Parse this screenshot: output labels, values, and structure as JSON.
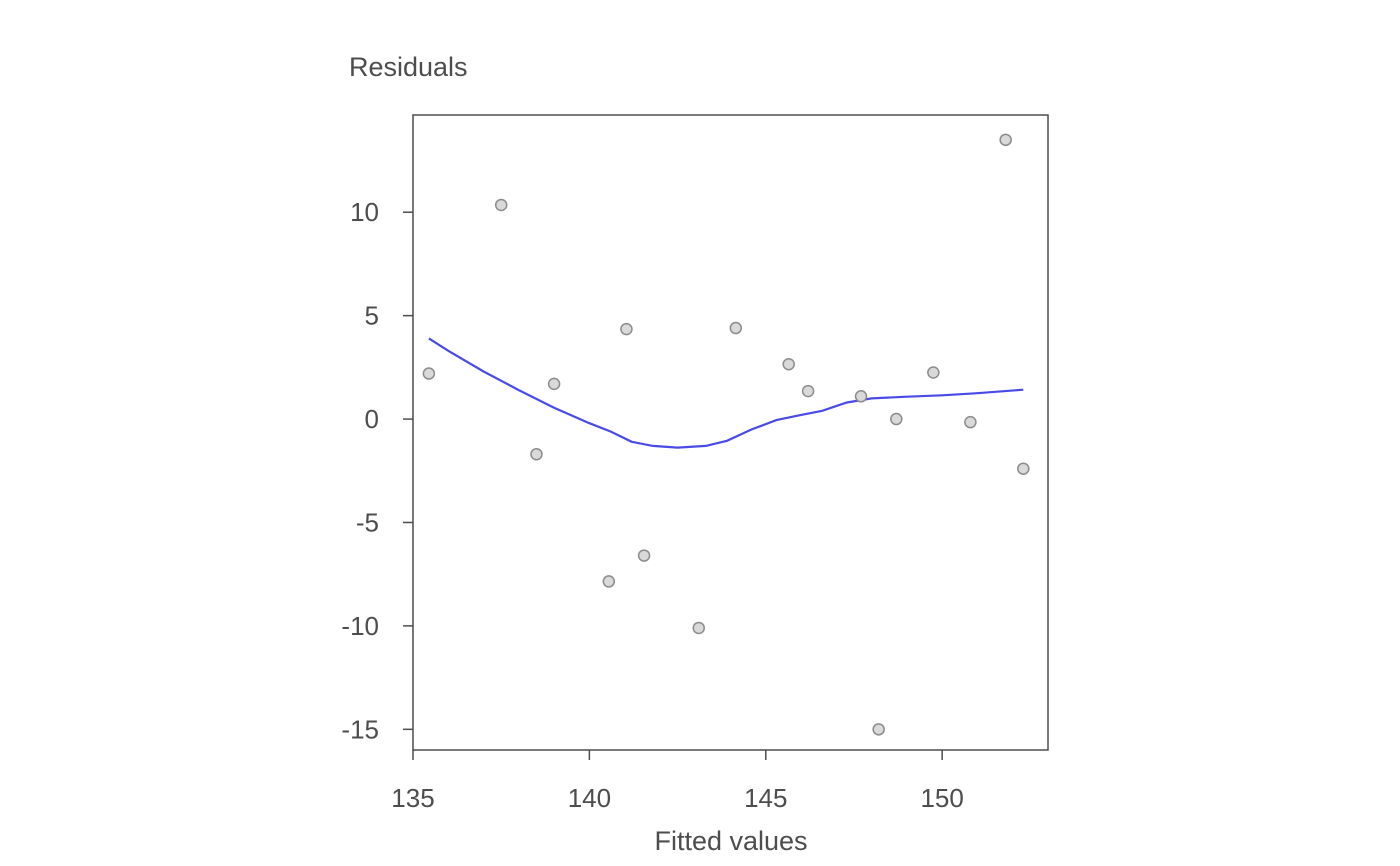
{
  "chart_data": {
    "type": "scatter",
    "title": "",
    "xlabel": "Fitted values",
    "ylabel": "Residuals",
    "xlim": [
      135,
      153
    ],
    "ylim": [
      -16,
      14.7
    ],
    "xticks": [
      135,
      140,
      145,
      150
    ],
    "yticks": [
      -15,
      -10,
      -5,
      0,
      5,
      10
    ],
    "grid": false,
    "points": [
      {
        "x": 135.45,
        "y": 2.2
      },
      {
        "x": 137.5,
        "y": 10.35
      },
      {
        "x": 138.5,
        "y": -1.7
      },
      {
        "x": 139.0,
        "y": 1.7
      },
      {
        "x": 140.55,
        "y": -7.85
      },
      {
        "x": 141.05,
        "y": 4.35
      },
      {
        "x": 141.55,
        "y": -6.6
      },
      {
        "x": 143.1,
        "y": -10.1
      },
      {
        "x": 144.15,
        "y": 4.4
      },
      {
        "x": 145.65,
        "y": 2.65
      },
      {
        "x": 146.2,
        "y": 1.35
      },
      {
        "x": 147.7,
        "y": 1.1
      },
      {
        "x": 148.2,
        "y": -15.0
      },
      {
        "x": 148.7,
        "y": 0.0
      },
      {
        "x": 149.75,
        "y": 2.25
      },
      {
        "x": 150.8,
        "y": -0.15
      },
      {
        "x": 151.8,
        "y": 13.5
      },
      {
        "x": 152.3,
        "y": -2.4
      }
    ],
    "smooth_line": [
      {
        "x": 135.45,
        "y": 3.9
      },
      {
        "x": 136.0,
        "y": 3.3
      },
      {
        "x": 137.0,
        "y": 2.3
      },
      {
        "x": 138.0,
        "y": 1.4
      },
      {
        "x": 139.0,
        "y": 0.55
      },
      {
        "x": 140.0,
        "y": -0.2
      },
      {
        "x": 140.6,
        "y": -0.6
      },
      {
        "x": 141.2,
        "y": -1.1
      },
      {
        "x": 141.8,
        "y": -1.3
      },
      {
        "x": 142.5,
        "y": -1.38
      },
      {
        "x": 143.3,
        "y": -1.3
      },
      {
        "x": 143.9,
        "y": -1.05
      },
      {
        "x": 144.6,
        "y": -0.5
      },
      {
        "x": 145.3,
        "y": -0.05
      },
      {
        "x": 146.0,
        "y": 0.2
      },
      {
        "x": 146.6,
        "y": 0.4
      },
      {
        "x": 147.3,
        "y": 0.8
      },
      {
        "x": 148.0,
        "y": 1.0
      },
      {
        "x": 149.0,
        "y": 1.08
      },
      {
        "x": 150.0,
        "y": 1.15
      },
      {
        "x": 151.0,
        "y": 1.25
      },
      {
        "x": 152.3,
        "y": 1.42
      }
    ]
  }
}
